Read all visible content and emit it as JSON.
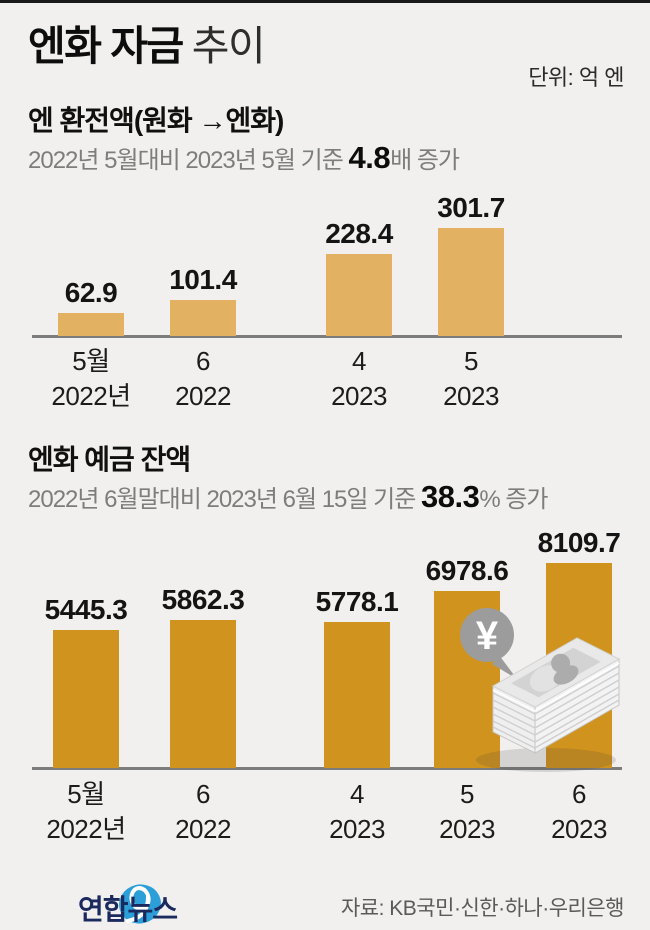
{
  "header": {
    "title_strong": "엔화 자금",
    "title_light": "추이",
    "unit": "단위: 억 엔"
  },
  "chart_data": [
    {
      "type": "bar",
      "title": "엔 환전액(원화 →엔화)",
      "subtitle": {
        "prefix": "2022년 5월대비 2023년 5월 기준 ",
        "emphasis": "4.8",
        "suffix": "배 증가"
      },
      "categories": [
        "5월 2022년",
        "6 2022",
        "4 2023",
        "5 2023"
      ],
      "labels_line1": [
        "5월",
        "6",
        "4",
        "5"
      ],
      "labels_line2": [
        "2022년",
        "2022",
        "2023",
        "2023"
      ],
      "values": [
        62.9,
        101.4,
        228.4,
        301.7
      ],
      "bar_color": "#e2b161",
      "ylim": [
        0,
        330
      ],
      "grid": false,
      "value_labels_shown": true,
      "unit": "억 엔"
    },
    {
      "type": "bar",
      "title": "엔화 예금 잔액",
      "subtitle": {
        "prefix": "2022년 6월말대비 2023년 6월 15일 기준 ",
        "emphasis": "38.3",
        "suffix": "% 증가"
      },
      "categories": [
        "5월 2022년",
        "6 2022",
        "4 2023",
        "5 2023",
        "6 2023"
      ],
      "labels_line1": [
        "5월",
        "6",
        "4",
        "5",
        "6"
      ],
      "labels_line2": [
        "2022년",
        "2022",
        "2023",
        "2023",
        "2023"
      ],
      "values": [
        5445.3,
        5862.3,
        5778.1,
        6978.6,
        8109.7
      ],
      "bar_color": "#d0931d",
      "ylim": [
        0,
        9300
      ],
      "grid": false,
      "value_labels_shown": true,
      "unit": "억 엔"
    }
  ],
  "illustration": {
    "currency_symbol": "¥"
  },
  "footer": {
    "logo_text": "연합뉴스",
    "source": "자료: KB국민·신한·하나·우리은행"
  },
  "colors": {
    "background": "#f1f0ee",
    "chart1_bar": "#e2b161",
    "chart2_bar": "#d0931d",
    "axis_line": "#7c7c7c",
    "subtitle_gray": "#7d7d7d",
    "bubble_gray": "#9c9c9c",
    "logo_blue": "#2d9fd8",
    "logo_navy": "#1b2a5e"
  }
}
